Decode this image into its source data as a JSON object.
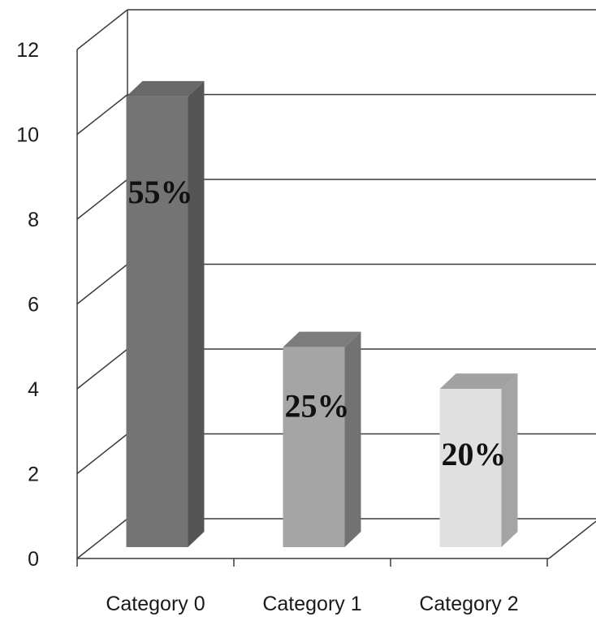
{
  "chart_data": {
    "type": "bar",
    "categories": [
      "Category 0",
      "Category 1",
      "Category 2"
    ],
    "values": [
      11,
      5,
      4
    ],
    "data_labels": [
      "55%",
      "25%",
      "20%"
    ],
    "ylim": [
      0,
      12
    ],
    "yticks": [
      0,
      2,
      4,
      6,
      8,
      10,
      12
    ],
    "ytick_labels": [
      "0",
      "2",
      "4",
      "6",
      "8",
      "10",
      "12"
    ],
    "title": "",
    "xlabel": "",
    "ylabel": "",
    "grid": true,
    "legend": "none",
    "style": "3d-column",
    "bar_colors": [
      {
        "front": "#747474",
        "side": "#555555",
        "top": "#696969"
      },
      {
        "front": "#a5a5a5",
        "side": "#727272",
        "top": "#7c7c7c"
      },
      {
        "front": "#e0e0e0",
        "side": "#a4a4a4",
        "top": "#a2a2a2"
      }
    ],
    "grid_color": "#3a3a3a"
  }
}
